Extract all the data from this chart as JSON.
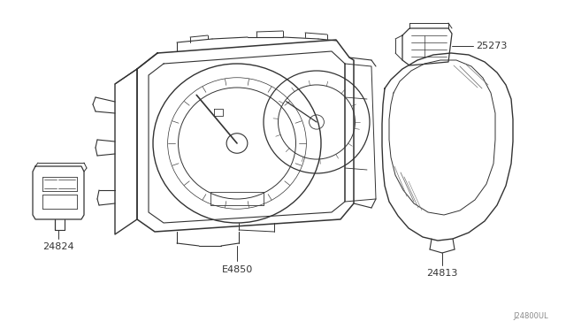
{
  "bg_color": "#ffffff",
  "line_color": "#333333",
  "label_color": "#333333",
  "light_line": "#555555",
  "diagram_code": "J24800UL",
  "font_size_label": 7,
  "font_size_code": 6
}
